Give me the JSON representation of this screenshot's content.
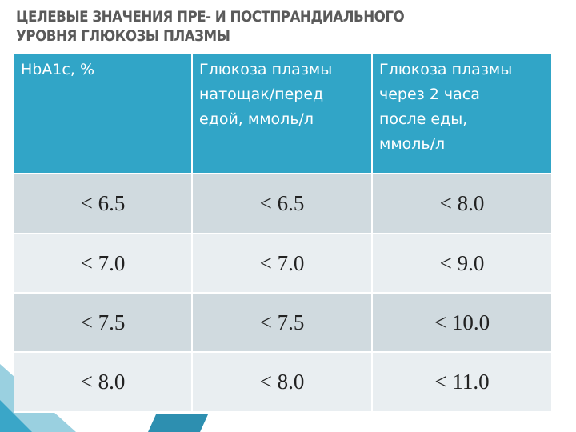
{
  "header": {
    "title_lines": [
      "ЦЕЛЕВЫЕ ЗНАЧЕНИЯ ПРЕ- И ПОСТПРАНДИАЛЬНОГО",
      "УРОВНЯ ГЛЮКОЗЫ ПЛАЗМЫ"
    ]
  },
  "table": {
    "columns": [
      [
        "HbA1c, %"
      ],
      [
        "Глюкоза плазмы",
        "натощак/перед",
        "едой, ммоль/л"
      ],
      [
        "Глюкоза плазмы",
        "через 2 часа",
        "после еды,",
        "ммоль/л"
      ]
    ],
    "rows": [
      [
        "< 6.5",
        "< 6.5",
        "< 8.0"
      ],
      [
        "< 7.0",
        "< 7.0",
        "< 9.0"
      ],
      [
        "< 7.5",
        "< 7.5",
        "< 10.0"
      ],
      [
        "< 8.0",
        "< 8.0",
        "< 11.0"
      ]
    ]
  }
}
